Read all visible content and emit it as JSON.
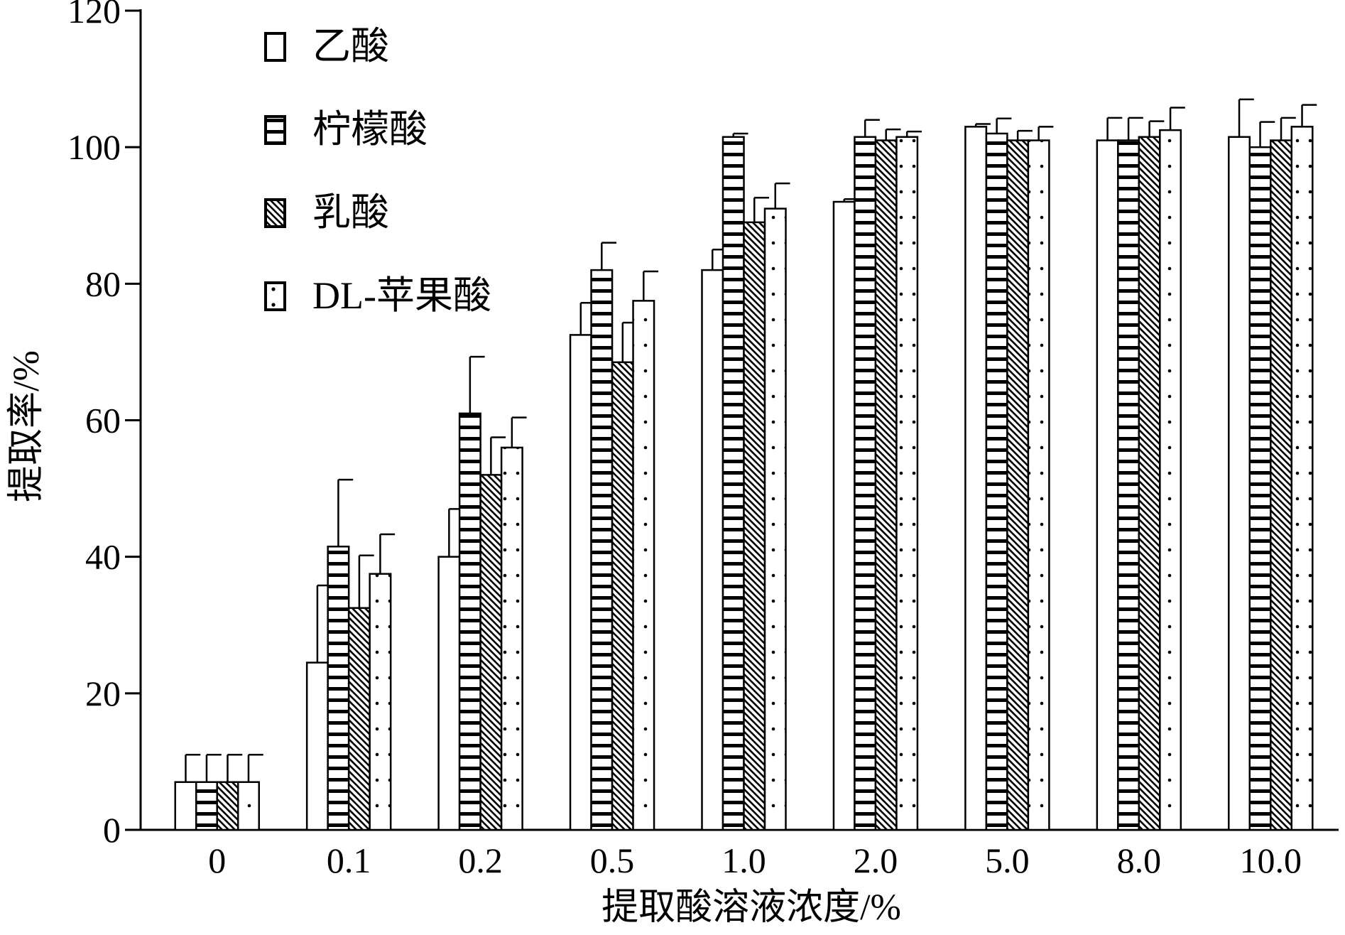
{
  "chart_data": {
    "type": "bar",
    "xlabel": "提取酸溶液浓度/%",
    "ylabel": "提取率/%",
    "ylim": [
      0,
      120
    ],
    "yticks": [
      0,
      20,
      40,
      60,
      80,
      100,
      120
    ],
    "categories": [
      "0",
      "0.1",
      "0.2",
      "0.5",
      "1.0",
      "2.0",
      "5.0",
      "8.0",
      "10.0"
    ],
    "legend_position": "top-left",
    "grid": false,
    "series": [
      {
        "name": "乙酸",
        "pattern": "blank",
        "values": [
          7,
          24.5,
          40,
          72.5,
          82,
          92,
          103,
          101,
          101.5
        ],
        "errors": [
          4,
          11.3,
          7,
          4.7,
          3,
          0.4,
          0.4,
          3.3,
          5.5
        ]
      },
      {
        "name": "柠檬酸",
        "pattern": "horizontal-stripes",
        "values": [
          7,
          41.5,
          61,
          82,
          101.5,
          101.5,
          102,
          101,
          100
        ],
        "errors": [
          4,
          9.8,
          8.3,
          4,
          0.5,
          2.5,
          2.2,
          3.3,
          3.7
        ]
      },
      {
        "name": "乳酸",
        "pattern": "diagonal-hatch",
        "values": [
          7,
          32.5,
          52,
          68.5,
          89,
          101,
          101,
          101.5,
          101
        ],
        "errors": [
          4,
          7.7,
          5.5,
          5.8,
          3.6,
          1.6,
          1.4,
          2.3,
          3.3
        ]
      },
      {
        "name": "DL-苹果酸",
        "pattern": "dotted",
        "values": [
          7,
          37.5,
          56,
          77.5,
          91,
          101.5,
          101,
          102.5,
          103
        ],
        "errors": [
          4,
          5.8,
          4.4,
          4.3,
          3.7,
          0.8,
          2,
          3.3,
          3.2
        ]
      }
    ]
  }
}
